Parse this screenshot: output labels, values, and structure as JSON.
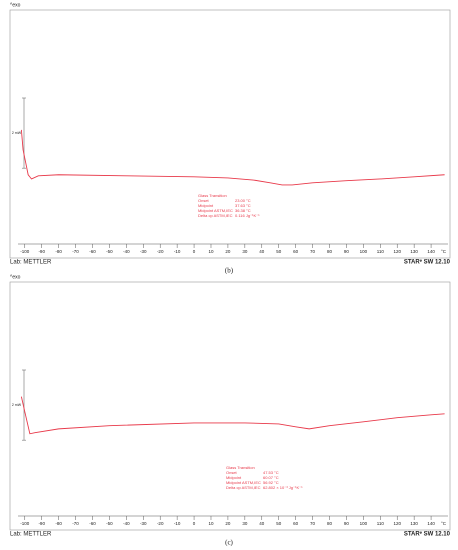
{
  "chart_data": [
    {
      "type": "line",
      "caption": "(b)",
      "exo_label": "^exo",
      "lab": "Lab: METTLER",
      "software": "STARᵉ SW 12.10",
      "x_unit": "°C",
      "scale_bar": {
        "value": 2,
        "label": "2 mW"
      },
      "x": [
        -102,
        -101,
        -98,
        -96,
        -92,
        -80,
        -40,
        0,
        20,
        35,
        45,
        52,
        58,
        70,
        90,
        110,
        130,
        148
      ],
      "series": [
        {
          "color": "#e8394a",
          "values": [
            3.14,
            2.57,
            1.86,
            1.74,
            1.83,
            1.86,
            1.83,
            1.8,
            1.77,
            1.71,
            1.63,
            1.57,
            1.57,
            1.63,
            1.69,
            1.74,
            1.8,
            1.86
          ]
        }
      ],
      "xlim": [
        -104,
        150
      ],
      "ylim": [
        0,
        6.5
      ],
      "xticks": [
        -100,
        -90,
        -80,
        -70,
        -60,
        -50,
        -40,
        -30,
        -20,
        -10,
        0,
        10,
        20,
        30,
        40,
        50,
        60,
        70,
        80,
        90,
        100,
        110,
        120,
        130,
        140
      ],
      "annotation": {
        "title": "Glass Transition",
        "rows": [
          [
            "Onset",
            "23.00 °C"
          ],
          [
            "Midpoint",
            "37.63 °C"
          ],
          [
            "Midpoint ASTM,IEC",
            "36.38 °C"
          ],
          [
            "Delta cp ASTM,IEC",
            "0.116 Jg⁻¹K⁻¹"
          ]
        ]
      }
    },
    {
      "type": "line",
      "caption": "(c)",
      "exo_label": "^exo",
      "lab": "Lab: METTLER",
      "software": "STARᵉ SW 12.10",
      "x_unit": "°C",
      "scale_bar": {
        "value": 2,
        "label": "2 mW"
      },
      "x": [
        -102,
        -100,
        -97,
        -94,
        -80,
        -50,
        0,
        30,
        50,
        60,
        68,
        80,
        100,
        120,
        140,
        148
      ],
      "series": [
        {
          "color": "#e8394a",
          "values": [
            3.29,
            2.86,
            2.23,
            2.26,
            2.37,
            2.46,
            2.54,
            2.54,
            2.51,
            2.43,
            2.37,
            2.46,
            2.57,
            2.69,
            2.77,
            2.8
          ]
        }
      ],
      "xlim": [
        -104,
        150
      ],
      "ylim": [
        0,
        6.5
      ],
      "xticks": [
        -100,
        -90,
        -80,
        -70,
        -60,
        -50,
        -40,
        -30,
        -20,
        -10,
        0,
        10,
        20,
        30,
        40,
        50,
        60,
        70,
        80,
        90,
        100,
        110,
        120,
        130,
        140
      ],
      "annotation": {
        "title": "Glass Transition",
        "rows": [
          [
            "Onset",
            "47.53 °C"
          ],
          [
            "Midpoint",
            "60.07 °C"
          ],
          [
            "Midpoint ASTM,IEC",
            "56.92 °C"
          ],
          [
            "Delta cp ASTM,IEC",
            "62.802 × 10⁻³ Jg⁻¹K⁻¹"
          ]
        ]
      }
    }
  ]
}
